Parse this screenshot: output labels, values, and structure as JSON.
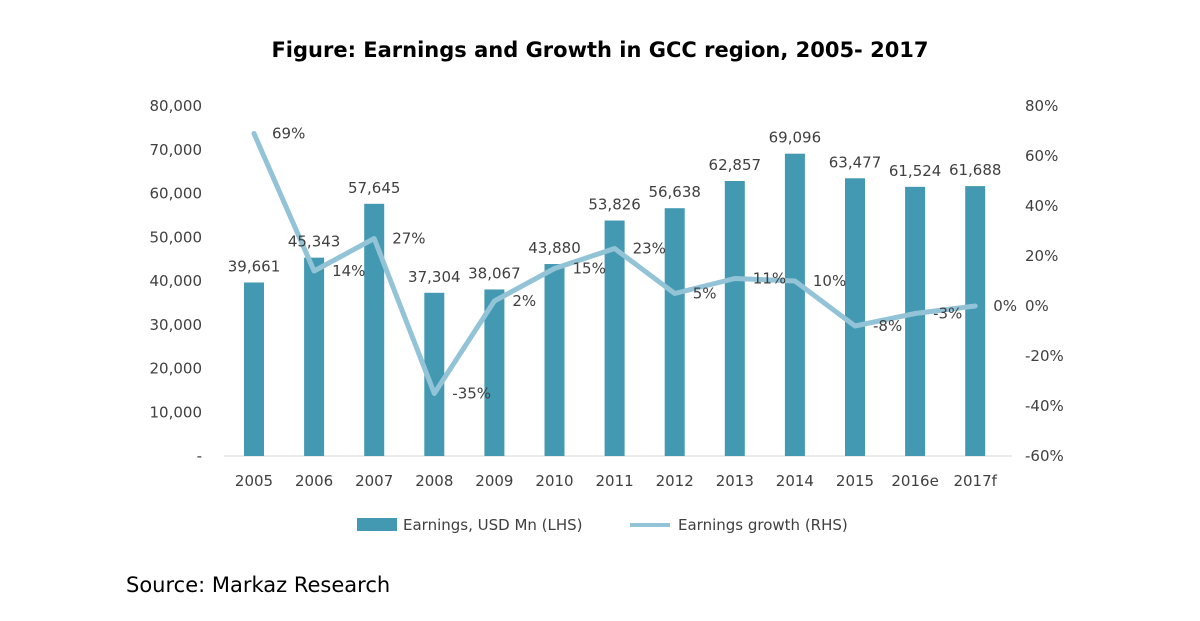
{
  "chart_data": {
    "type": "bar+line",
    "title": "Figure: Earnings and Growth in GCC region, 2005- 2017",
    "categories": [
      "2005",
      "2006",
      "2007",
      "2008",
      "2009",
      "2010",
      "2011",
      "2012",
      "2013",
      "2014",
      "2015",
      "2016e",
      "2017f"
    ],
    "series": [
      {
        "name": "Earnings, USD Mn (LHS)",
        "type": "bar",
        "axis": "left",
        "color": "#4399B2",
        "values": [
          39661,
          45343,
          57645,
          37304,
          38067,
          43880,
          53826,
          56638,
          62857,
          69096,
          63477,
          61524,
          61688
        ],
        "labels": [
          "39,661",
          "45,343",
          "57,645",
          "37,304",
          "38,067",
          "43,880",
          "53,826",
          "56,638",
          "62,857",
          "69,096",
          "63,477",
          "61,524",
          "61,688"
        ]
      },
      {
        "name": "Earnings growth (RHS)",
        "type": "line",
        "axis": "right",
        "color": "#93C3D6",
        "values": [
          69,
          14,
          27,
          -35,
          2,
          15,
          23,
          5,
          11,
          10,
          -8,
          -3,
          0
        ],
        "labels": [
          "69%",
          "14%",
          "27%",
          "-35%",
          "2%",
          "15%",
          "23%",
          "5%",
          "11%",
          "10%",
          "-8%",
          "-3%",
          "0%"
        ]
      }
    ],
    "y_left": {
      "ylim": [
        0,
        80000
      ],
      "ticks": [
        0,
        10000,
        20000,
        30000,
        40000,
        50000,
        60000,
        70000,
        80000
      ],
      "tick_labels": [
        "-",
        "10,000",
        "20,000",
        "30,000",
        "40,000",
        "50,000",
        "60,000",
        "70,000",
        "80,000"
      ]
    },
    "y_right": {
      "ylim": [
        -60,
        80
      ],
      "ticks": [
        -60,
        -40,
        -20,
        0,
        20,
        40,
        60,
        80
      ],
      "tick_labels": [
        "-60%",
        "-40%",
        "-20%",
        "0%",
        "20%",
        "40%",
        "60%",
        "80%"
      ]
    },
    "legend": {
      "placement": "bottom",
      "items": [
        "Earnings, USD Mn (LHS)",
        "Earnings growth (RHS)"
      ]
    },
    "grid": false
  },
  "source": "Source: Markaz Research"
}
